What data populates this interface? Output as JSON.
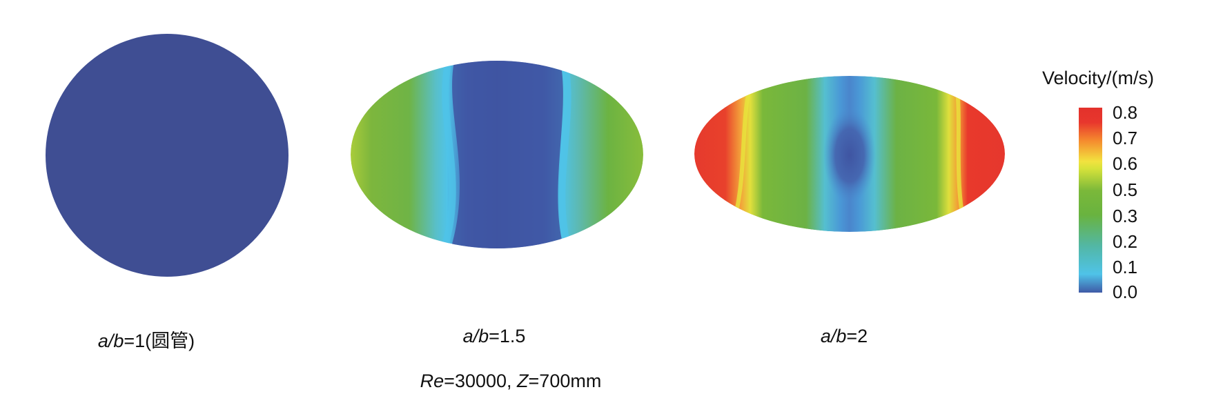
{
  "panels": [
    {
      "id": "circle",
      "label_italic": "a/b",
      "label_rest": "=1(圆管)"
    },
    {
      "id": "ellipse-1_5",
      "label_italic": "a/b",
      "label_rest": "=1.5"
    },
    {
      "id": "ellipse-2",
      "label_italic": "a/b",
      "label_rest": "=2"
    }
  ],
  "condition": {
    "re_symbol": "Re",
    "re_value": "=30000, ",
    "z_symbol": "Z",
    "z_value": "=700mm"
  },
  "colorbar": {
    "title": "Velocity/(m/s)",
    "ticks": [
      "0.8",
      "0.7",
      "0.6",
      "0.5",
      "0.3",
      "0.2",
      "0.1",
      "0.0"
    ],
    "colors": {
      "low": "#3f5aa6",
      "cyan": "#4fc3e8",
      "green": "#69b33f",
      "yellow": "#f2e23f",
      "high": "#e3312c"
    }
  }
}
